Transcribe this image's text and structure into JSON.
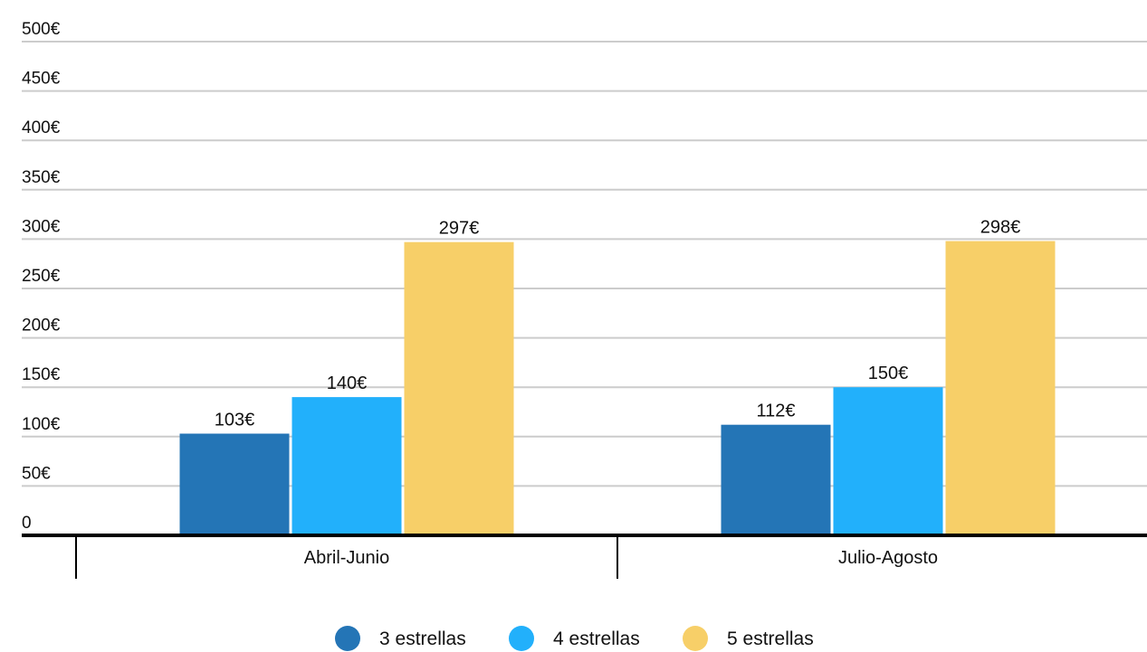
{
  "chart_data": {
    "type": "bar",
    "categories": [
      "Abril-Junio",
      "Julio-Agosto"
    ],
    "series": [
      {
        "name": "3 estrellas",
        "values": [
          103,
          112
        ],
        "value_labels": [
          "103€",
          "112€"
        ],
        "color": "#2475b6"
      },
      {
        "name": "4 estrellas",
        "values": [
          140,
          150
        ],
        "value_labels": [
          "140€",
          "150€"
        ],
        "color": "#22b0fb"
      },
      {
        "name": "5 estrellas",
        "values": [
          297,
          298
        ],
        "value_labels": [
          "297€",
          "298€"
        ],
        "color": "#f7cf68"
      }
    ],
    "y_ticks": [
      0,
      50,
      100,
      150,
      200,
      250,
      300,
      350,
      400,
      450,
      500
    ],
    "y_tick_labels": [
      "0",
      "50€",
      "100€",
      "150€",
      "200€",
      "250€",
      "300€",
      "350€",
      "400€",
      "450€",
      "500€"
    ],
    "ylim": [
      0,
      500
    ],
    "grid": true,
    "gridline_color": "#cccccc",
    "axis_color": "#000000",
    "legend_position": "bottom-center",
    "title": "",
    "xlabel": "",
    "ylabel": ""
  }
}
